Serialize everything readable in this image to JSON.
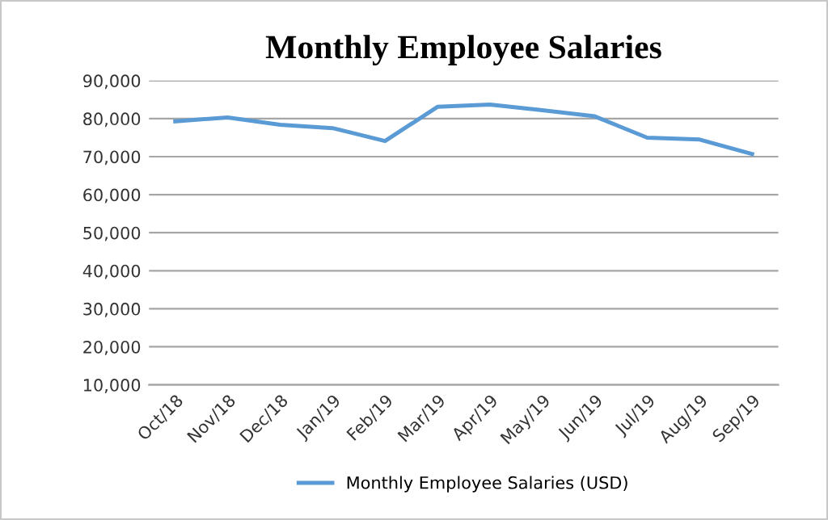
{
  "chart_data": {
    "type": "line",
    "title": "Monthly Employee Salaries",
    "categories": [
      "Oct/18",
      "Nov/18",
      "Dec/18",
      "Jan/19",
      "Feb/19",
      "Mar/19",
      "Apr/19",
      "May/19",
      "Jun/19",
      "Jul/19",
      "Aug/19",
      "Sep/19"
    ],
    "series": [
      {
        "name": "Monthly Employee Salaries (USD)",
        "color": "#5b9bd5",
        "values": [
          79300,
          80300,
          78400,
          77500,
          74100,
          83100,
          83700,
          82200,
          80600,
          75000,
          74500,
          70700
        ]
      }
    ],
    "ylim": [
      10000,
      90000
    ],
    "yticks": [
      {
        "value": 10000,
        "label": "10,000"
      },
      {
        "value": 20000,
        "label": "20,000"
      },
      {
        "value": 30000,
        "label": "30,000"
      },
      {
        "value": 40000,
        "label": "40,000"
      },
      {
        "value": 50000,
        "label": "50,000"
      },
      {
        "value": 60000,
        "label": "60,000"
      },
      {
        "value": 70000,
        "label": "70,000"
      },
      {
        "value": 80000,
        "label": "80,000"
      },
      {
        "value": 90000,
        "label": "90,000"
      }
    ],
    "grid": "y",
    "legend": "bottom",
    "marker": "none",
    "line_style": "solid"
  }
}
